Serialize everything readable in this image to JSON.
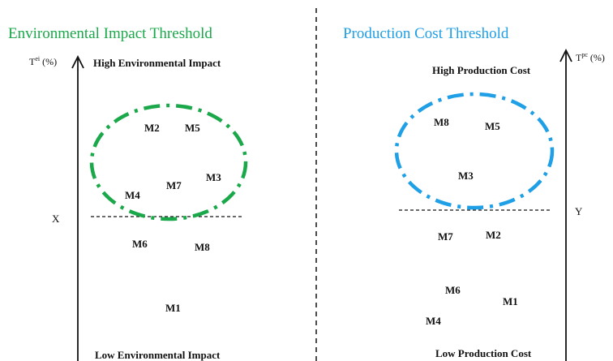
{
  "colors": {
    "environmental": "#1aa84a",
    "production": "#1f9fe6",
    "ink": "#111111"
  },
  "left": {
    "title": "Environmental Impact Threshold",
    "axis_label_main": "T",
    "axis_label_sup": "ei",
    "axis_label_unit": " (%)",
    "high_label": "High Environmental Impact",
    "low_label": "Low Environmental Impact",
    "threshold_label": "X",
    "materials": [
      {
        "id": "m2",
        "label": "M2"
      },
      {
        "id": "m5",
        "label": "M5"
      },
      {
        "id": "m3",
        "label": "M3"
      },
      {
        "id": "m7",
        "label": "M7"
      },
      {
        "id": "m4",
        "label": "M4"
      },
      {
        "id": "m6",
        "label": "M6"
      },
      {
        "id": "m8",
        "label": "M8"
      },
      {
        "id": "m1",
        "label": "M1"
      }
    ]
  },
  "right": {
    "title": "Production Cost Threshold",
    "axis_label_main": "T",
    "axis_label_sup": "pc",
    "axis_label_unit": " (%)",
    "high_label": "High Production Cost",
    "low_label": "Low Production Cost",
    "threshold_label": "Y",
    "materials": [
      {
        "id": "m8",
        "label": "M8"
      },
      {
        "id": "m5",
        "label": "M5"
      },
      {
        "id": "m3",
        "label": "M3"
      },
      {
        "id": "m7",
        "label": "M7"
      },
      {
        "id": "m2",
        "label": "M2"
      },
      {
        "id": "m6",
        "label": "M6"
      },
      {
        "id": "m1",
        "label": "M1"
      },
      {
        "id": "m4",
        "label": "M4"
      }
    ]
  }
}
